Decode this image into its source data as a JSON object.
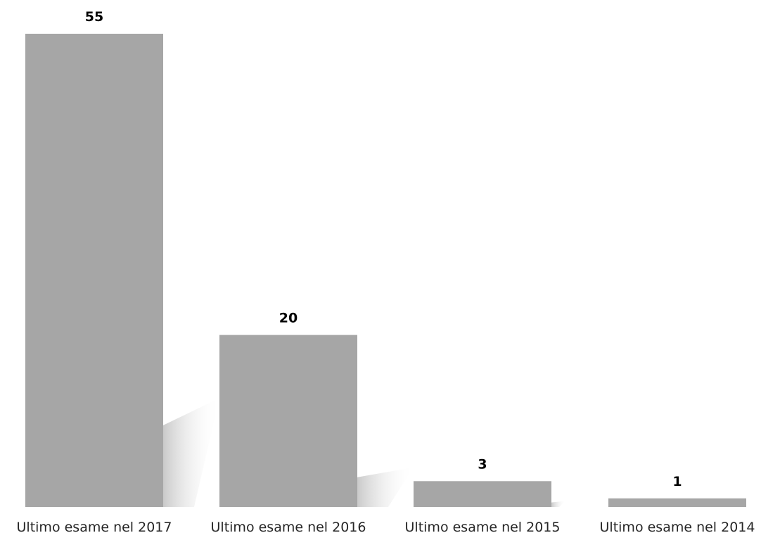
{
  "chart_data": {
    "type": "bar",
    "title": "",
    "xlabel": "",
    "ylabel": "",
    "categories": [
      "Ultimo esame nel 2017",
      "Ultimo esame nel 2016",
      "Ultimo esame nel 2015",
      "Ultimo esame nel 2014"
    ],
    "values": [
      55,
      20,
      3,
      1
    ],
    "data_labels": [
      "55",
      "20",
      "3",
      "1"
    ],
    "ylim": [
      0,
      55
    ],
    "grid": false,
    "legend": "none",
    "bar_color": "#a6a6a6",
    "shadow_color": "#d0d0d0"
  }
}
